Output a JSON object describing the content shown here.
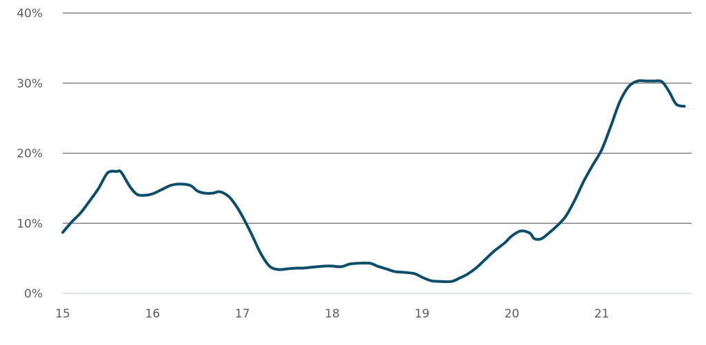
{
  "chart_data": {
    "type": "line",
    "title": "",
    "xlabel": "",
    "ylabel": "",
    "xlim": [
      15,
      22
    ],
    "ylim": [
      0,
      40
    ],
    "x_ticks": [
      "15",
      "16",
      "17",
      "18",
      "19",
      "20",
      "21"
    ],
    "y_ticks": [
      "0%",
      "10%",
      "20%",
      "30%",
      "40%"
    ],
    "grid": true,
    "legend": "none",
    "series_color": "#0b4d6b",
    "series": [
      {
        "x": [
          15.0,
          15.1,
          15.2,
          15.3,
          15.4,
          15.5,
          15.6,
          15.65,
          15.75,
          15.83,
          15.92,
          16.0,
          16.1,
          16.2,
          16.3,
          16.42,
          16.5,
          16.58,
          16.67,
          16.75,
          16.85,
          16.93,
          17.0,
          17.1,
          17.2,
          17.3,
          17.4,
          17.5,
          17.6,
          17.67,
          17.75,
          17.83,
          17.92,
          18.0,
          18.1,
          18.2,
          18.3,
          18.42,
          18.5,
          18.6,
          18.7,
          18.8,
          18.92,
          19.0,
          19.1,
          19.2,
          19.33,
          19.42,
          19.5,
          19.6,
          19.7,
          19.8,
          19.92,
          20.0,
          20.1,
          20.2,
          20.25,
          20.33,
          20.42,
          20.5,
          20.6,
          20.7,
          20.8,
          20.9,
          21.0,
          21.1,
          21.2,
          21.3,
          21.4,
          21.5,
          21.58,
          21.67,
          21.75,
          21.83,
          21.92
        ],
        "y": [
          8.7,
          10.2,
          11.5,
          13.2,
          15.0,
          17.2,
          17.4,
          17.3,
          15.2,
          14.1,
          14.0,
          14.2,
          14.8,
          15.4,
          15.6,
          15.4,
          14.6,
          14.3,
          14.3,
          14.5,
          13.8,
          12.5,
          11.0,
          8.5,
          5.8,
          3.9,
          3.4,
          3.5,
          3.6,
          3.6,
          3.7,
          3.8,
          3.9,
          3.9,
          3.8,
          4.2,
          4.3,
          4.3,
          3.9,
          3.5,
          3.1,
          3.0,
          2.8,
          2.3,
          1.8,
          1.7,
          1.7,
          2.2,
          2.7,
          3.6,
          4.8,
          6.0,
          7.2,
          8.2,
          8.9,
          8.6,
          7.8,
          7.8,
          8.7,
          9.6,
          11.0,
          13.3,
          16.0,
          18.3,
          20.5,
          23.8,
          27.3,
          29.5,
          30.3,
          30.3,
          30.3,
          30.2,
          28.8,
          27.0,
          26.7
        ]
      }
    ]
  }
}
